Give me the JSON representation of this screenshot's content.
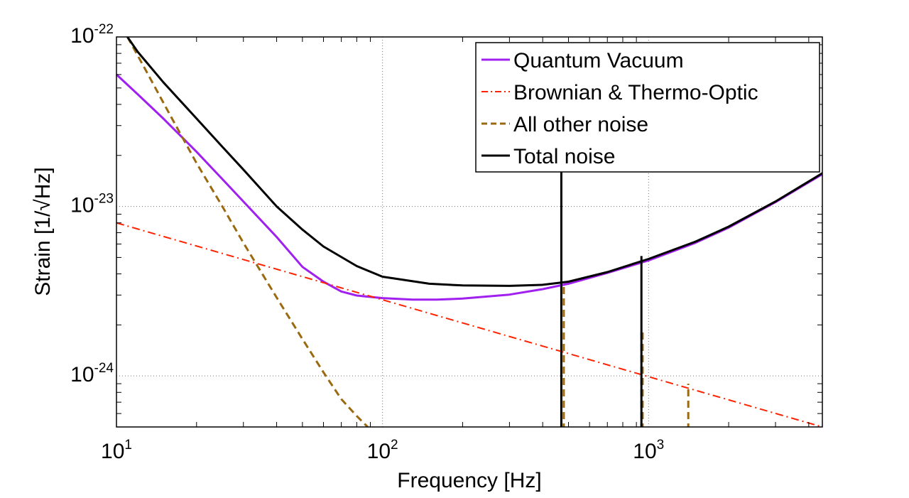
{
  "chart_data": {
    "type": "line",
    "xscale": "log",
    "yscale": "log",
    "xlabel": "Frequency [Hz]",
    "ylabel": "Strain [1/√Hz]",
    "xlim": [
      10,
      4500
    ],
    "ylim": [
      5e-25,
      1e-22
    ],
    "grid": true,
    "legend_position": "top-right",
    "x_ticks": [
      {
        "value": 10,
        "base": "10",
        "exp": "1"
      },
      {
        "value": 100,
        "base": "10",
        "exp": "2"
      },
      {
        "value": 1000,
        "base": "10",
        "exp": "3"
      }
    ],
    "y_ticks": [
      {
        "value": 1e-24,
        "base": "10",
        "exp": "-24"
      },
      {
        "value": 1e-23,
        "base": "10",
        "exp": "-23"
      },
      {
        "value": 1e-22,
        "base": "10",
        "exp": "-22"
      }
    ],
    "series": [
      {
        "name": "Quantum Vacuum",
        "color": "#a020f0",
        "style": "solid",
        "width": 3,
        "points": [
          [
            10,
            6e-23
          ],
          [
            12,
            4.6e-23
          ],
          [
            15,
            3.3e-23
          ],
          [
            20,
            2.1e-23
          ],
          [
            25,
            1.45e-23
          ],
          [
            30,
            1.07e-23
          ],
          [
            40,
            6.6e-24
          ],
          [
            50,
            4.4e-24
          ],
          [
            60,
            3.6e-24
          ],
          [
            70,
            3.15e-24
          ],
          [
            80,
            2.98e-24
          ],
          [
            100,
            2.88e-24
          ],
          [
            130,
            2.82e-24
          ],
          [
            160,
            2.82e-24
          ],
          [
            200,
            2.86e-24
          ],
          [
            300,
            3.02e-24
          ],
          [
            400,
            3.25e-24
          ],
          [
            500,
            3.5e-24
          ],
          [
            700,
            4.05e-24
          ],
          [
            1000,
            4.8e-24
          ],
          [
            1500,
            6.1e-24
          ],
          [
            2000,
            7.5e-24
          ],
          [
            3000,
            1.06e-23
          ],
          [
            4500,
            1.55e-23
          ]
        ]
      },
      {
        "name": "Brownian & Thermo-Optic",
        "color": "#ff2200",
        "style": "dashdot",
        "width": 2,
        "points": [
          [
            10,
            8e-24
          ],
          [
            4500,
            5e-25
          ]
        ]
      },
      {
        "name": "All other noise",
        "color": "#9b6a10",
        "style": "dashed",
        "width": 3,
        "points": [
          [
            11,
            1e-22
          ],
          [
            13,
            6.2e-23
          ],
          [
            16,
            3.4e-23
          ],
          [
            20,
            1.8e-23
          ],
          [
            25,
            1e-23
          ],
          [
            30,
            6.1e-24
          ],
          [
            40,
            2.9e-24
          ],
          [
            50,
            1.65e-24
          ],
          [
            60,
            1.05e-24
          ],
          [
            70,
            7.3e-25
          ],
          [
            80,
            5.8e-25
          ],
          [
            88,
            5e-25
          ]
        ],
        "spikes": [
          {
            "x": 470,
            "y_top": 3.4e-24
          },
          {
            "x": 480,
            "y_top": 3.4e-24
          },
          {
            "x": 940,
            "y_top": 1.9e-24
          },
          {
            "x": 950,
            "y_top": 1.9e-24
          },
          {
            "x": 1410,
            "y_top": 9e-25
          }
        ]
      },
      {
        "name": "Total noise",
        "color": "#000000",
        "style": "solid",
        "width": 3,
        "points": [
          [
            11,
            1e-22
          ],
          [
            12,
            8.2e-23
          ],
          [
            15,
            5.4e-23
          ],
          [
            20,
            3.3e-23
          ],
          [
            25,
            2.25e-23
          ],
          [
            30,
            1.65e-23
          ],
          [
            40,
            1e-23
          ],
          [
            50,
            7.3e-24
          ],
          [
            60,
            5.8e-24
          ],
          [
            80,
            4.45e-24
          ],
          [
            100,
            3.85e-24
          ],
          [
            150,
            3.5e-24
          ],
          [
            200,
            3.42e-24
          ],
          [
            300,
            3.4e-24
          ],
          [
            400,
            3.45e-24
          ],
          [
            500,
            3.6e-24
          ],
          [
            700,
            4.1e-24
          ],
          [
            1000,
            4.9e-24
          ],
          [
            1500,
            6.2e-24
          ],
          [
            2000,
            7.6e-24
          ],
          [
            3000,
            1.07e-23
          ],
          [
            4500,
            1.57e-23
          ]
        ],
        "spikes": [
          {
            "x": 470,
            "y_top": 1.6e-23
          },
          {
            "x": 940,
            "y_top": 5.1e-24
          }
        ]
      }
    ]
  }
}
